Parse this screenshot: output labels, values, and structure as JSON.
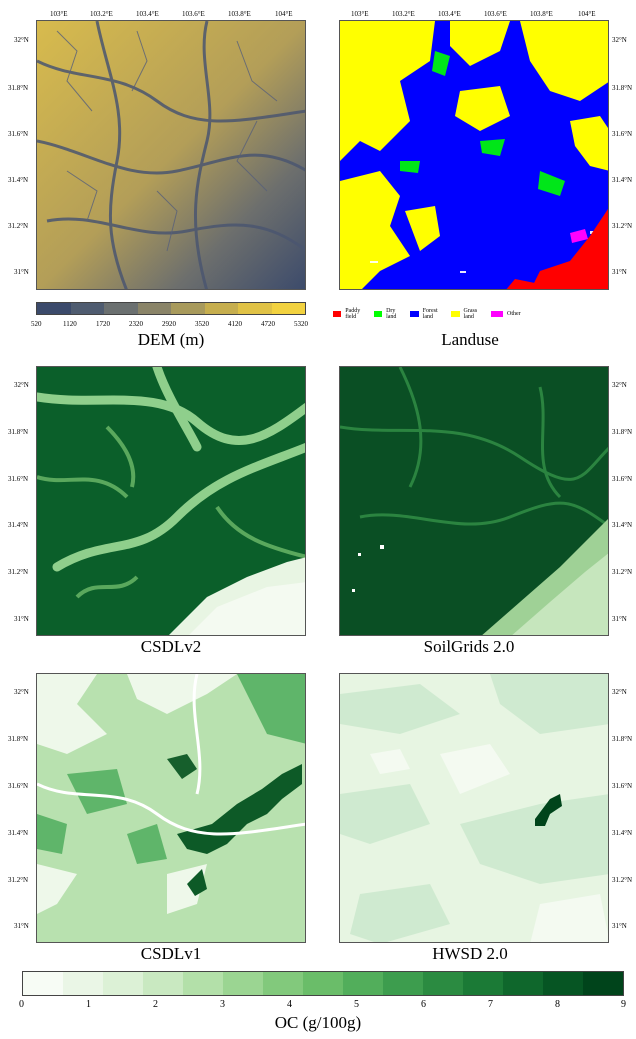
{
  "lon_ticks": [
    "103°E",
    "103.2°E",
    "103.4°E",
    "103.6°E",
    "103.8°E",
    "104°E"
  ],
  "lat_ticks": [
    "32°N",
    "31.8°N",
    "31.6°N",
    "31.4°N",
    "31.2°N",
    "31°N"
  ],
  "panels": {
    "dem": {
      "caption": "DEM (m)"
    },
    "landuse": {
      "caption": "Landuse"
    },
    "csdlv2": {
      "caption": "CSDLv2"
    },
    "soilgrids": {
      "caption": "SoilGrids 2.0"
    },
    "csdlv1": {
      "caption": "CSDLv1"
    },
    "hwsd": {
      "caption": "HWSD 2.0"
    }
  },
  "dem_colorbar": {
    "ticks": [
      "520",
      "1120",
      "1720",
      "2320",
      "2920",
      "3520",
      "4120",
      "4720",
      "5320"
    ],
    "colors": [
      "#3b4a6b",
      "#4f5c70",
      "#6b7070",
      "#8a8468",
      "#a89a5c",
      "#c6ae4e",
      "#e0c246",
      "#f2d240"
    ]
  },
  "landuse_legend": [
    {
      "label": "Paddy field",
      "color": "#ff0000"
    },
    {
      "label": "Dry land",
      "color": "#00ff00"
    },
    {
      "label": "Forest land",
      "color": "#0000ff"
    },
    {
      "label": "Grass land",
      "color": "#ffff00"
    },
    {
      "label": "Other",
      "color": "#ff00ff"
    }
  ],
  "oc_colorbar": {
    "label": "OC (g/100g)",
    "ticks": [
      "0",
      "1",
      "2",
      "3",
      "4",
      "5",
      "6",
      "7",
      "8",
      "9"
    ],
    "colors": [
      "#f7fcf5",
      "#eaf6e6",
      "#dcf1d6",
      "#c9e9c1",
      "#b3e0a9",
      "#9bd592",
      "#82c97c",
      "#6abd69",
      "#52ae5b",
      "#3d9d4e",
      "#2b8b41",
      "#1b7a36",
      "#0f672c",
      "#065523",
      "#00441b"
    ]
  }
}
